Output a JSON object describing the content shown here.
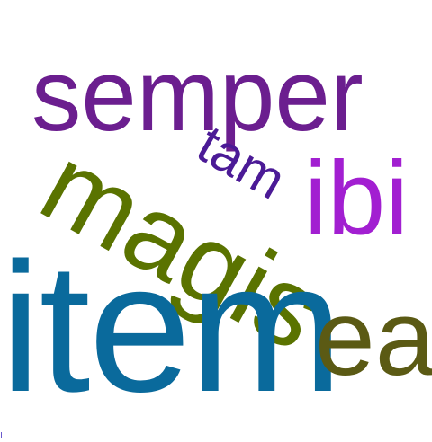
{
  "words": {
    "semper": {
      "text": "semper",
      "color": "#6b1e8f"
    },
    "magis": {
      "text": "magis",
      "color": "#5a7300"
    },
    "tam": {
      "text": "tam",
      "color": "#4b1a96"
    },
    "ibi": {
      "text": "ibi",
      "color": "#a21fd1"
    },
    "item": {
      "text": "item",
      "color": "#0a6a9c"
    },
    "ea": {
      "text": "ea",
      "color": "#5b5a14"
    }
  }
}
